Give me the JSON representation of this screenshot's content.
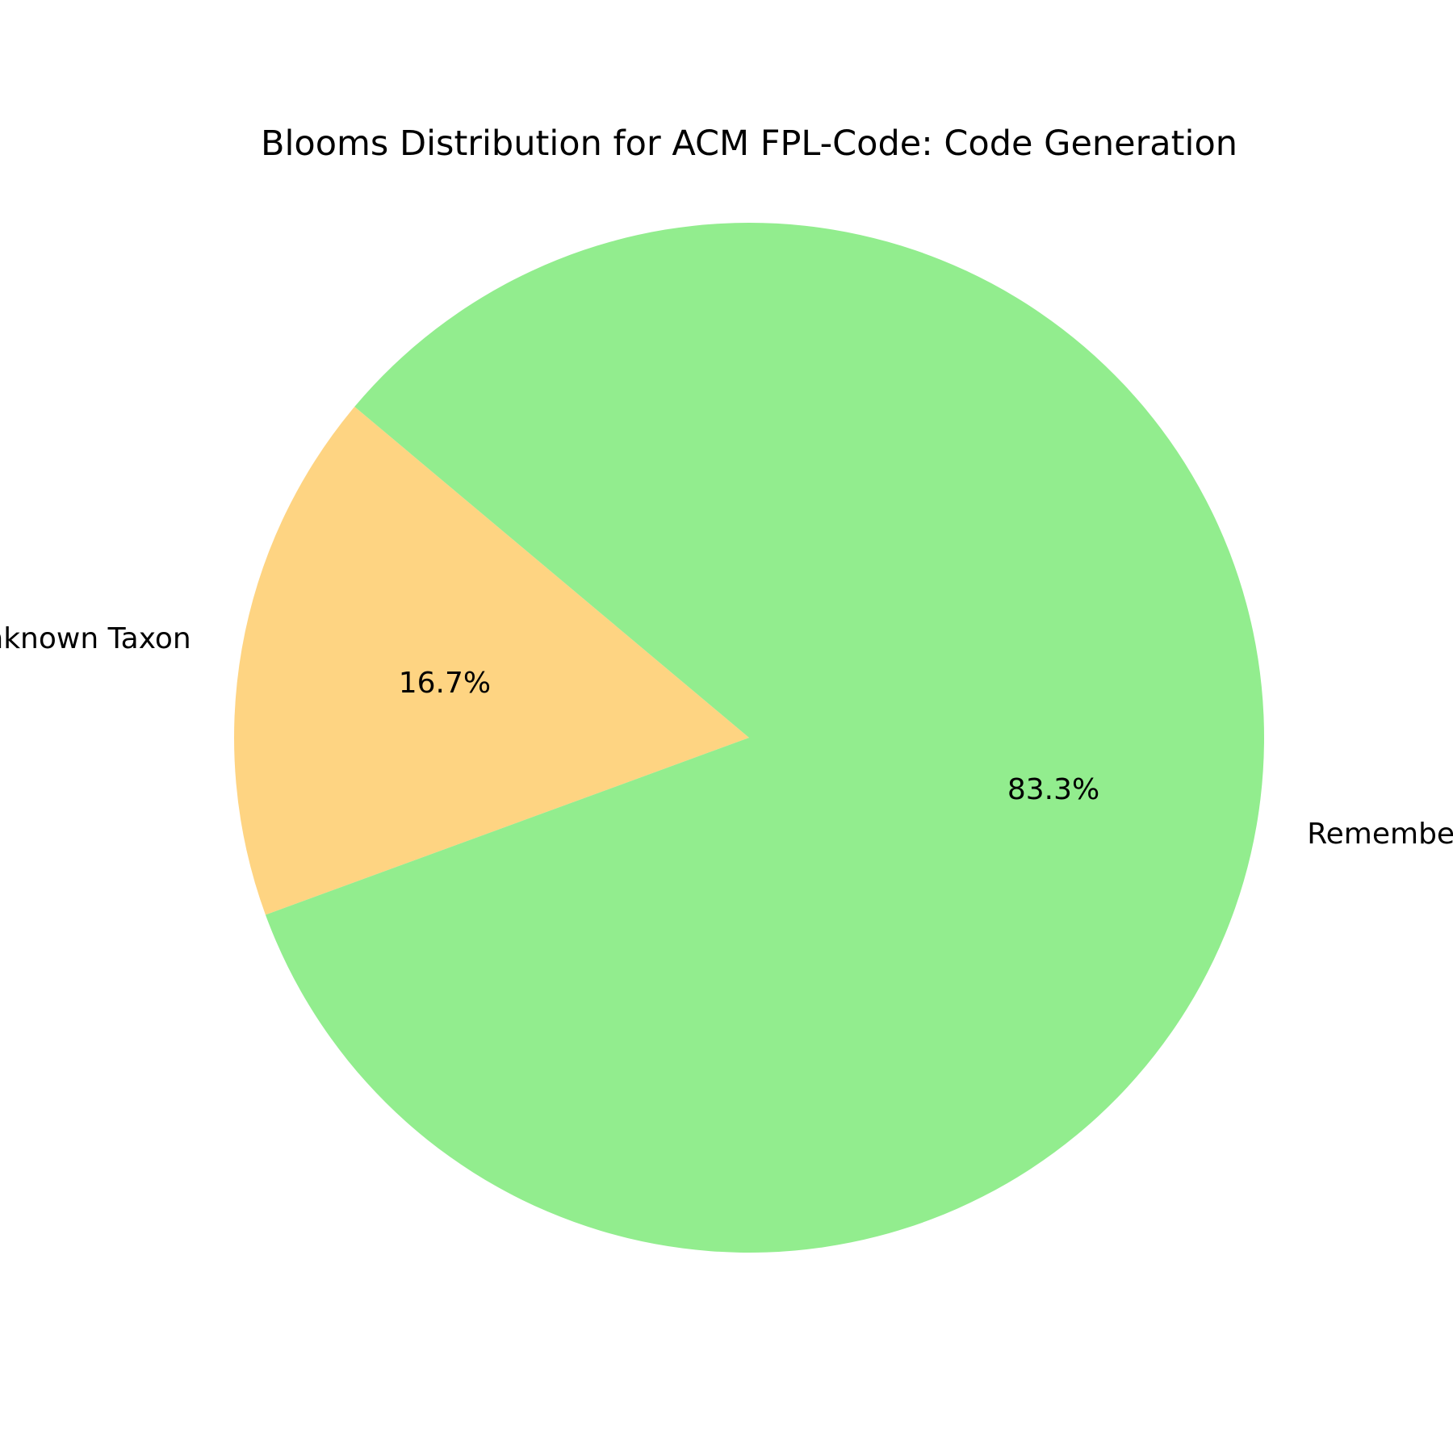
{
  "chart_data": {
    "type": "pie",
    "title": "Blooms Distribution for ACM FPL-Code: Code Generation",
    "start_angle_deg": 140,
    "direction": "counterclockwise",
    "slices": [
      {
        "label": "Unknown Taxon",
        "value": 16.7,
        "pct_text": "16.7%",
        "color": "#fed482"
      },
      {
        "label": "Remember Taxon",
        "value": 83.3,
        "pct_text": "83.3%",
        "color": "#92ed8e"
      }
    ]
  }
}
